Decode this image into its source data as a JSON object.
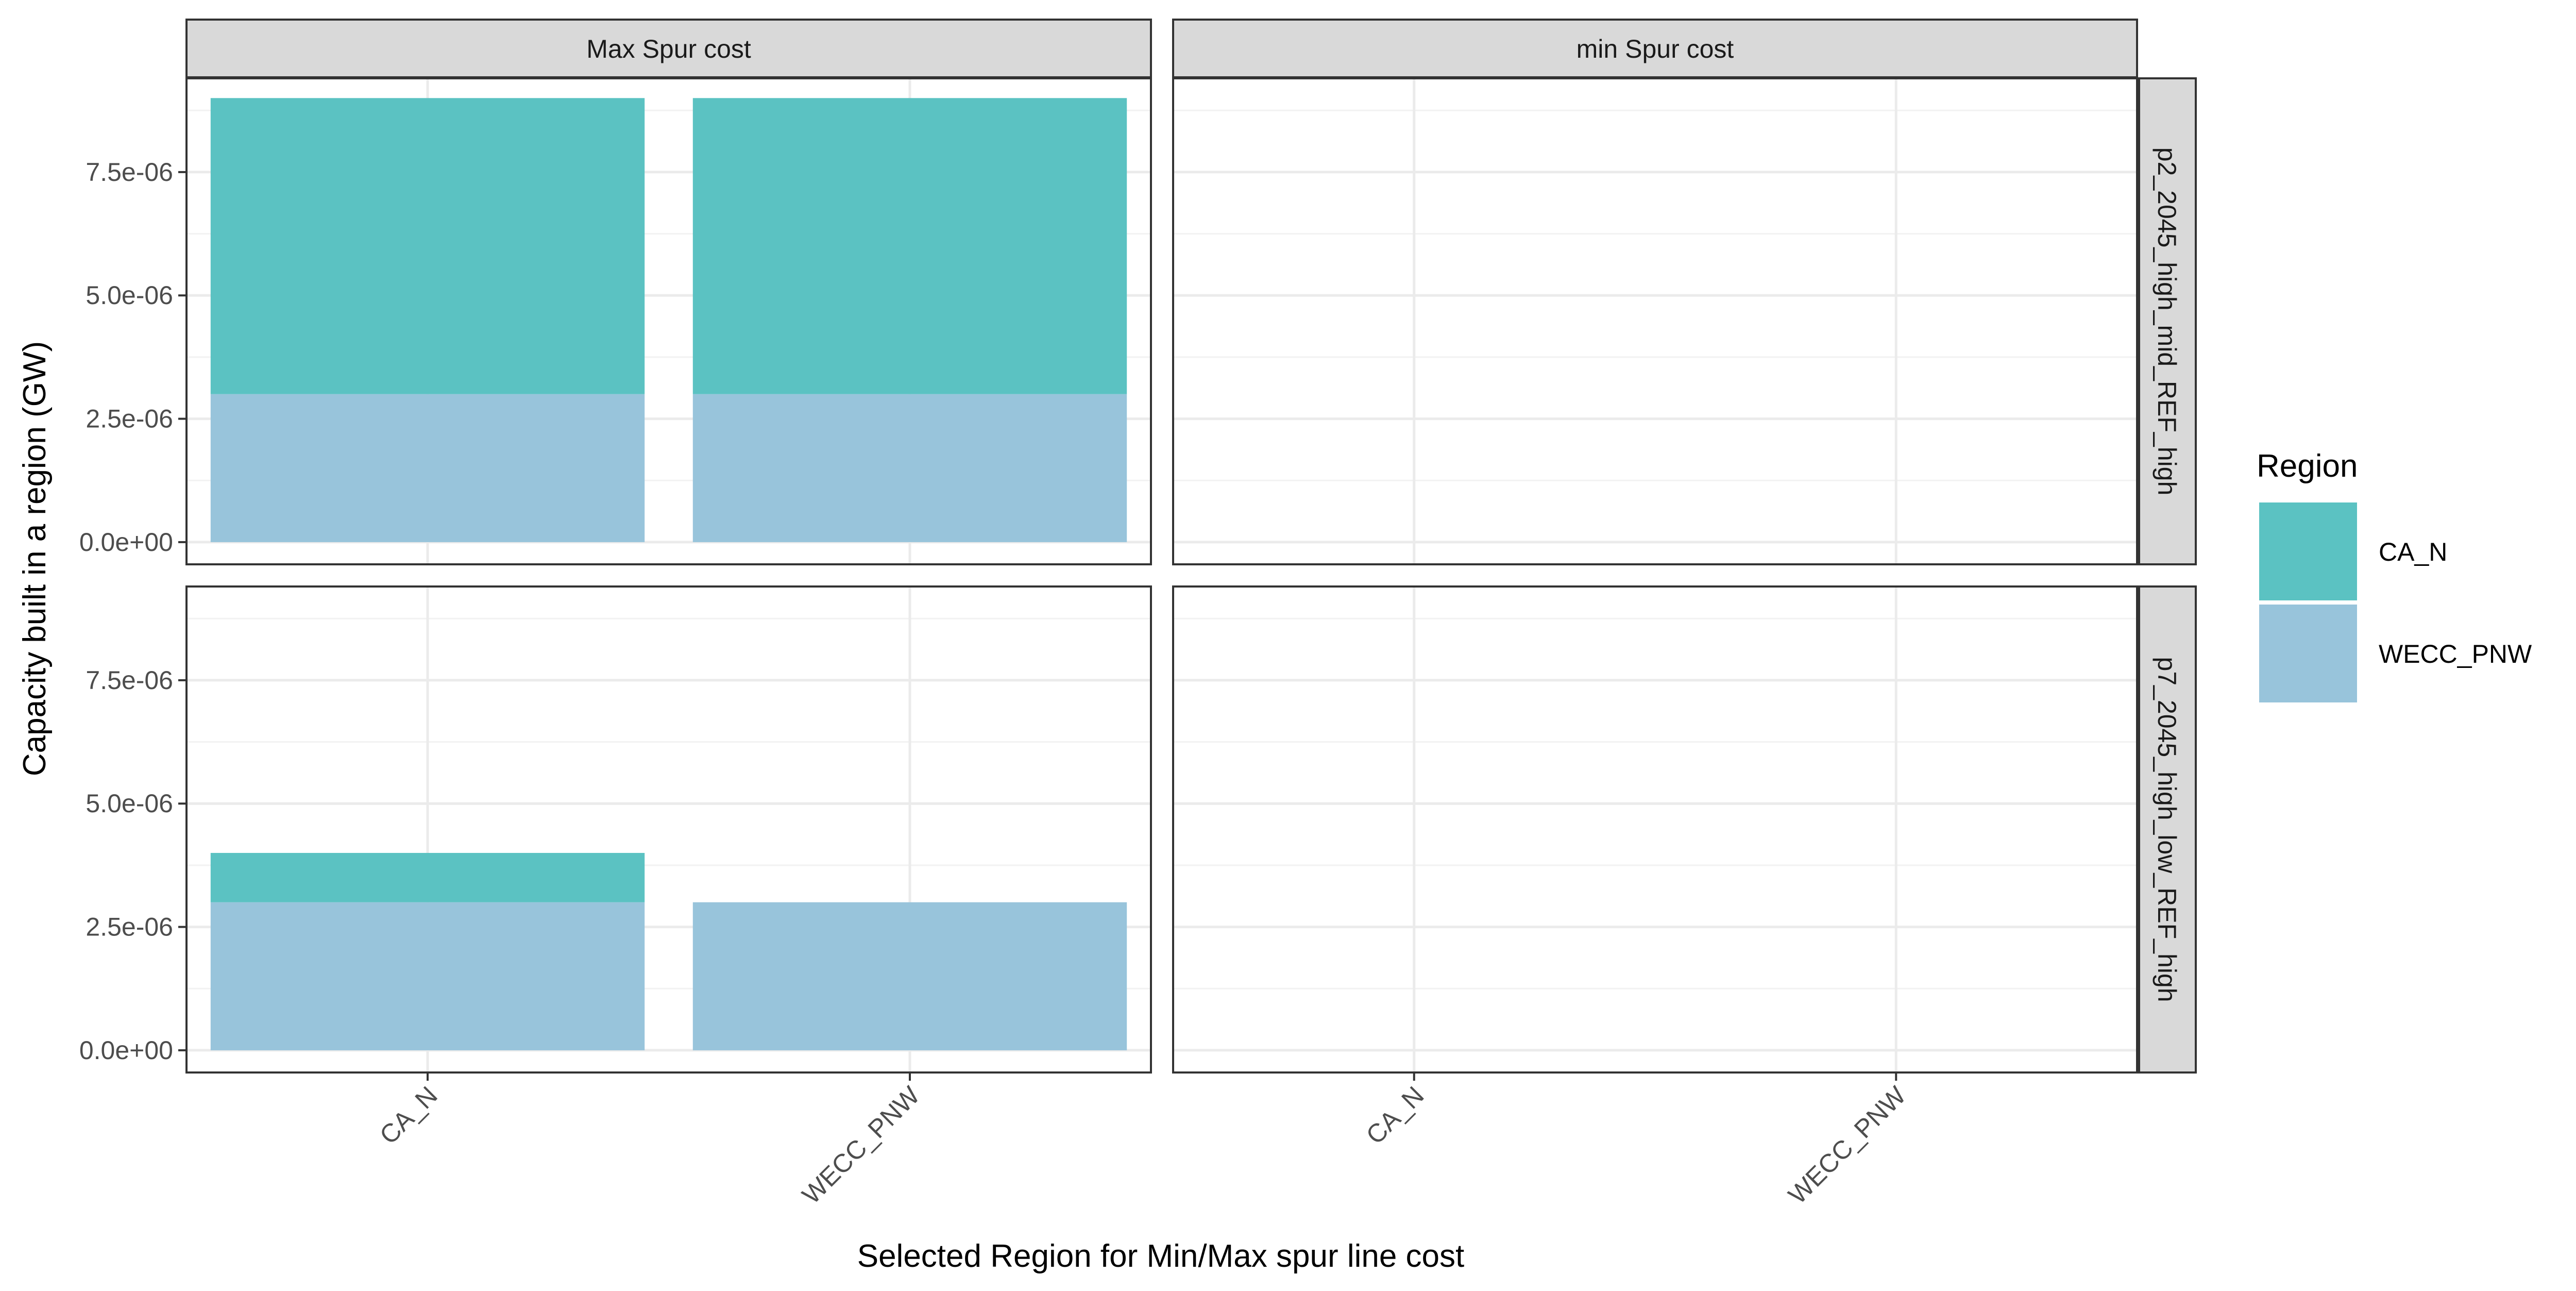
{
  "chart_data": {
    "type": "bar",
    "stacked": true,
    "xlabel": "Selected Region for Min/Max spur line cost",
    "ylabel": "Capacity built in a region (GW)",
    "ylim": [
      -4.5e-07,
      9.4e-06
    ],
    "yticks": [
      0,
      2.5e-06,
      5e-06,
      7.5e-06
    ],
    "ytick_labels": [
      "0.0e+00",
      "2.5e-06",
      "5.0e-06",
      "7.5e-06"
    ],
    "categories": [
      "CA_N",
      "WECC_PNW"
    ],
    "grid": true,
    "legend": {
      "title": "Region",
      "position": "right",
      "entries": [
        {
          "name": "CA_N",
          "color": "#5BC2C2"
        },
        {
          "name": "WECC_PNW",
          "color": "#98C4DB"
        }
      ]
    },
    "facet_cols": [
      "Max Spur cost",
      "min Spur cost"
    ],
    "facet_rows": [
      "p2_2045_high_mid_REF_high",
      "p7_2045_high_low_REF_high"
    ],
    "panels": [
      {
        "row": 0,
        "col": 0,
        "series": [
          {
            "name": "WECC_PNW",
            "values": [
              3e-06,
              3e-06
            ]
          },
          {
            "name": "CA_N",
            "values": [
              6e-06,
              6e-06
            ]
          }
        ]
      },
      {
        "row": 0,
        "col": 1,
        "series": []
      },
      {
        "row": 1,
        "col": 0,
        "series": [
          {
            "name": "WECC_PNW",
            "values": [
              3e-06,
              3e-06
            ]
          },
          {
            "name": "CA_N",
            "values": [
              1e-06,
              0
            ]
          }
        ]
      },
      {
        "row": 1,
        "col": 1,
        "series": []
      }
    ]
  }
}
